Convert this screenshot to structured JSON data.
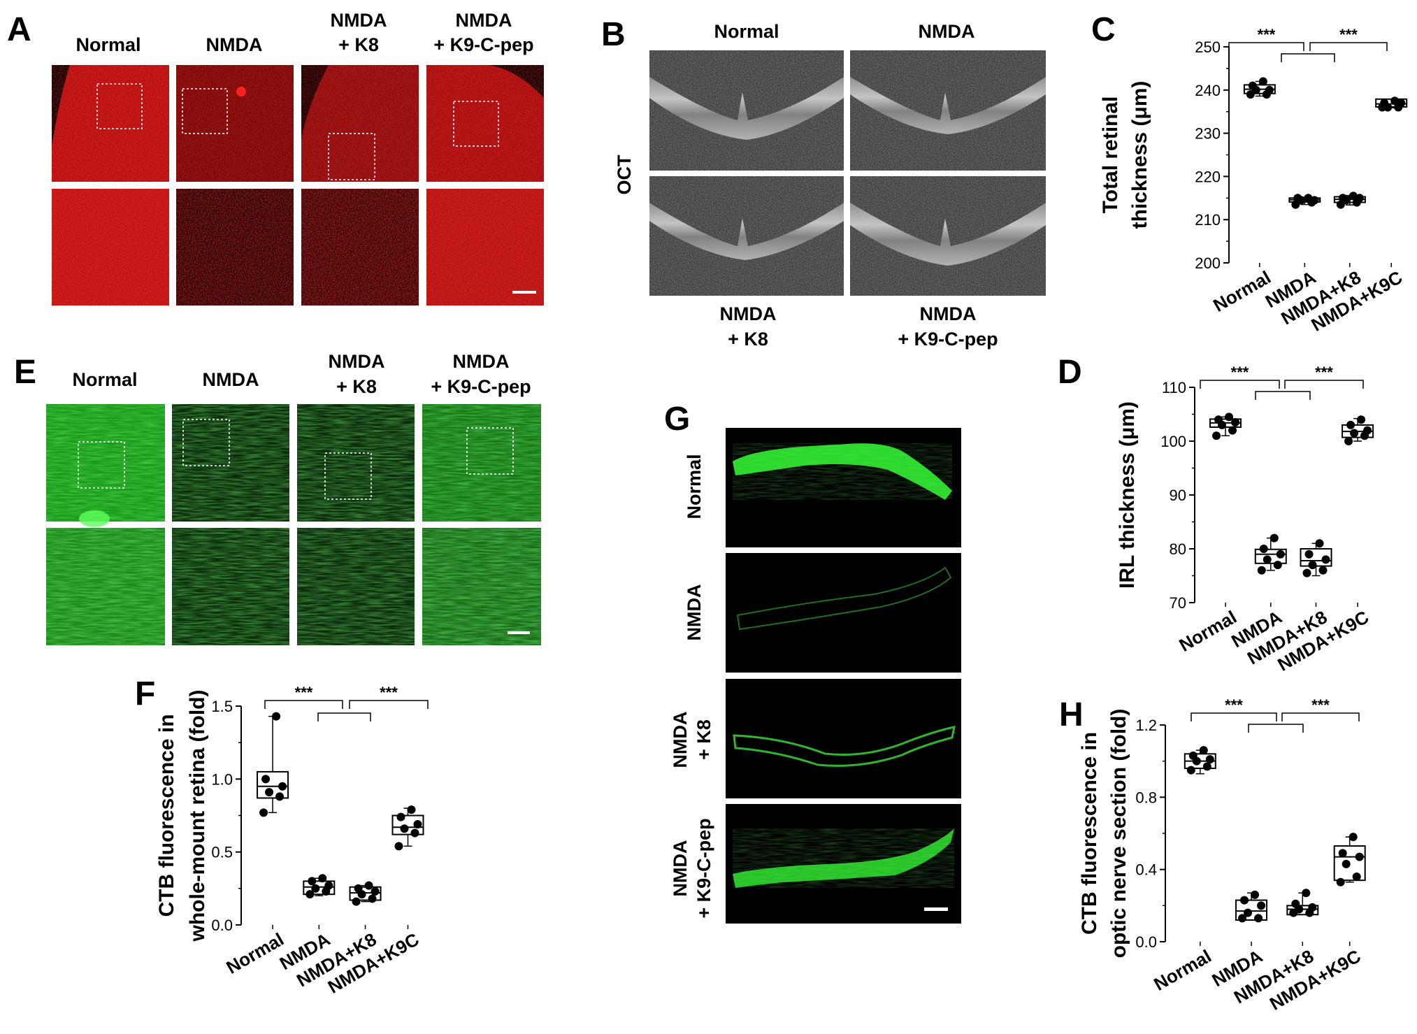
{
  "colors": {
    "red_stain": "#d21010",
    "green_stain": "#1fd11f",
    "oct_gray": "#5a5a5a",
    "ink": "#000000"
  },
  "panel_letters": {
    "A": "A",
    "B": "B",
    "C": "C",
    "D": "D",
    "E": "E",
    "F": "F",
    "G": "G",
    "H": "H"
  },
  "panel_a": {
    "headers": [
      "Normal",
      "NMDA",
      "NMDA",
      "+ K8",
      "NMDA",
      "+ K9-C-pep"
    ]
  },
  "panel_b": {
    "top_headers": [
      "Normal",
      "NMDA"
    ],
    "side_label": "OCT",
    "bottom_headers": [
      "NMDA",
      "+ K8",
      "NMDA",
      "+ K9-C-pep"
    ]
  },
  "panel_e": {
    "headers": [
      "Normal",
      "NMDA",
      "NMDA",
      "+ K8",
      "NMDA",
      "+ K9-C-pep"
    ]
  },
  "panel_g": {
    "row_labels": [
      "Normal",
      "NMDA",
      "NMDA",
      "+ K8",
      "NMDA",
      "+ K9-C-pep"
    ]
  },
  "significance": "***",
  "chart_data": [
    {
      "panel": "C",
      "type": "box",
      "categories": [
        "Normal",
        "NMDA",
        "NMDA+K8",
        "NMDA+K9C"
      ],
      "ylabel": [
        "Total retinal",
        "thickness (μm)"
      ],
      "ylim": [
        200,
        250
      ],
      "yticks": [
        200,
        210,
        220,
        230,
        240,
        250
      ],
      "points": [
        [
          239,
          239,
          240,
          240,
          241,
          242
        ],
        [
          213.5,
          214,
          214.5,
          214.5,
          215,
          215
        ],
        [
          213.5,
          214,
          214.5,
          215,
          215,
          215.5
        ],
        [
          236,
          236,
          236,
          237,
          237,
          237.5
        ]
      ],
      "box": [
        [
          239.2,
          240.2,
          241.2
        ],
        [
          214.1,
          214.6,
          215.0
        ],
        [
          214.0,
          214.7,
          215.3
        ],
        [
          236.1,
          236.8,
          237.9
        ]
      ],
      "whisker": [
        [
          238.6,
          242.0
        ],
        [
          213.5,
          215.2
        ],
        [
          213.4,
          215.6
        ],
        [
          235.9,
          237.8
        ]
      ]
    },
    {
      "panel": "D",
      "type": "box",
      "categories": [
        "Normal",
        "NMDA",
        "NMDA+K8",
        "NMDA+K9C"
      ],
      "ylabel": [
        "IRL thickness (μm)"
      ],
      "ylim": [
        70,
        110
      ],
      "yticks": [
        70,
        80,
        90,
        100,
        110
      ],
      "points": [
        [
          101,
          102,
          103,
          103.5,
          104,
          104.5
        ],
        [
          76,
          77,
          78,
          79,
          80,
          82
        ],
        [
          75.5,
          76,
          77,
          78,
          79,
          81
        ],
        [
          100,
          101,
          101.5,
          102,
          103,
          104
        ]
      ],
      "box": [
        [
          102.6,
          103.4,
          104.1
        ],
        [
          77.3,
          79.0,
          79.9
        ],
        [
          76.8,
          77.8,
          80.0
        ],
        [
          100.7,
          101.8,
          103.0
        ]
      ],
      "whisker": [
        [
          101.0,
          104.5
        ],
        [
          76.0,
          82.0
        ],
        [
          75.0,
          81.0
        ],
        [
          100.0,
          104.2
        ]
      ]
    },
    {
      "panel": "F",
      "type": "box",
      "categories": [
        "Normal",
        "NMDA",
        "NMDA+K8",
        "NMDA+K9C"
      ],
      "ylabel": [
        "CTB fluorescence in",
        "whole-mount retina (fold)"
      ],
      "ylim": [
        0.0,
        1.5
      ],
      "yticks": [
        0.0,
        0.5,
        1.0,
        1.5
      ],
      "points": [
        [
          0.77,
          0.88,
          0.91,
          0.95,
          1.0,
          1.43
        ],
        [
          0.21,
          0.23,
          0.25,
          0.27,
          0.3,
          0.32
        ],
        [
          0.16,
          0.18,
          0.21,
          0.23,
          0.25,
          0.27
        ],
        [
          0.54,
          0.63,
          0.66,
          0.69,
          0.74,
          0.79
        ]
      ],
      "box": [
        [
          0.87,
          0.95,
          1.05
        ],
        [
          0.21,
          0.26,
          0.3
        ],
        [
          0.17,
          0.22,
          0.26
        ],
        [
          0.62,
          0.67,
          0.75
        ]
      ],
      "whisker": [
        [
          0.77,
          1.43
        ],
        [
          0.2,
          0.32
        ],
        [
          0.16,
          0.27
        ],
        [
          0.54,
          0.8
        ]
      ]
    },
    {
      "panel": "H",
      "type": "box",
      "categories": [
        "Normal",
        "NMDA",
        "NMDA+K8",
        "NMDA+K9C"
      ],
      "ylabel": [
        "CTB fluorescence in",
        "optic nerve section (fold)"
      ],
      "ylim": [
        0.0,
        1.2
      ],
      "yticks": [
        0.0,
        0.4,
        0.8,
        1.2
      ],
      "points": [
        [
          0.95,
          0.97,
          1.0,
          1.01,
          1.03,
          1.06
        ],
        [
          0.13,
          0.13,
          0.16,
          0.2,
          0.23,
          0.26
        ],
        [
          0.16,
          0.16,
          0.18,
          0.19,
          0.21,
          0.27
        ],
        [
          0.33,
          0.36,
          0.43,
          0.47,
          0.49,
          0.58
        ]
      ],
      "box": [
        [
          0.96,
          1.0,
          1.04
        ],
        [
          0.12,
          0.17,
          0.23
        ],
        [
          0.15,
          0.18,
          0.2
        ],
        [
          0.34,
          0.47,
          0.53
        ]
      ],
      "whisker": [
        [
          0.93,
          1.06
        ],
        [
          0.12,
          0.27
        ],
        [
          0.15,
          0.27
        ],
        [
          0.33,
          0.58
        ]
      ]
    }
  ]
}
